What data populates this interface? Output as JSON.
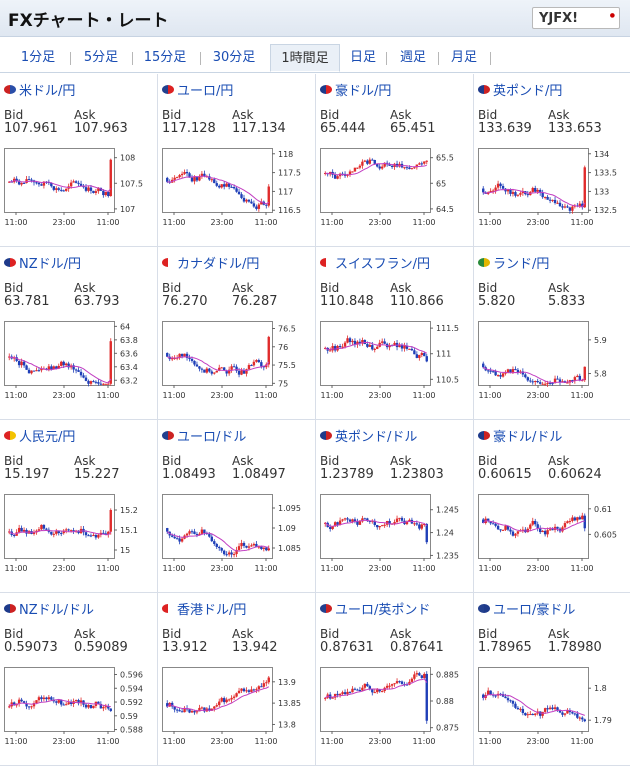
{
  "header": {
    "title": "FXチャート・レート",
    "logo": "YJFX!"
  },
  "tabs": [
    {
      "label": "1分足"
    },
    {
      "label": "5分足"
    },
    {
      "label": "15分足"
    },
    {
      "label": "30分足"
    },
    {
      "label": "1時間足",
      "active": true
    },
    {
      "label": "日足"
    },
    {
      "label": "週足"
    },
    {
      "label": "月足"
    }
  ],
  "bid_label": "Bid",
  "ask_label": "Ask",
  "x_ticks": [
    "11:00",
    "23:00",
    "11:00"
  ],
  "colors": {
    "up": "#e02b2b",
    "down": "#1f3fb8",
    "ma": "#c23fc2",
    "link": "#1a4db3"
  },
  "pairs": [
    {
      "name": "米ドル/円",
      "flag": "usjp",
      "bid": "107.961",
      "ask": "107.963",
      "y_ticks": [
        "108",
        "107.5",
        "107"
      ],
      "ylim": [
        106.9,
        108.15
      ],
      "close": 107.96
    },
    {
      "name": "ユーロ/円",
      "flag": "eujp",
      "bid": "117.128",
      "ask": "117.134",
      "y_ticks": [
        "118",
        "117.5",
        "117",
        "116.5"
      ],
      "ylim": [
        116.4,
        118.1
      ],
      "close": 117.13
    },
    {
      "name": "豪ドル/円",
      "flag": "aujp",
      "bid": "65.444",
      "ask": "65.451",
      "y_ticks": [
        "65.5",
        "65",
        "64.5"
      ],
      "ylim": [
        64.4,
        65.65
      ],
      "close": 65.44
    },
    {
      "name": "英ポンド/円",
      "flag": "gbjp",
      "bid": "133.639",
      "ask": "133.653",
      "y_ticks": [
        "134",
        "133.5",
        "133",
        "132.5"
      ],
      "ylim": [
        132.4,
        134.1
      ],
      "close": 133.64
    },
    {
      "name": "NZドル/円",
      "flag": "nzjp",
      "bid": "63.781",
      "ask": "63.793",
      "y_ticks": [
        "64",
        "63.8",
        "63.6",
        "63.4",
        "63.2"
      ],
      "ylim": [
        63.1,
        64.05
      ],
      "close": 63.78
    },
    {
      "name": "カナダドル/円",
      "flag": "cajp",
      "bid": "76.270",
      "ask": "76.287",
      "y_ticks": [
        "76.5",
        "76",
        "75.5",
        "75"
      ],
      "ylim": [
        74.9,
        76.65
      ],
      "close": 76.27
    },
    {
      "name": "スイスフラン/円",
      "flag": "chjp",
      "bid": "110.848",
      "ask": "110.866",
      "y_ticks": [
        "111.5",
        "111",
        "110.5"
      ],
      "ylim": [
        110.35,
        111.6
      ],
      "close": 110.85
    },
    {
      "name": "ランド/円",
      "flag": "zajp",
      "bid": "5.820",
      "ask": "5.833",
      "y_ticks": [
        "5.9",
        "5.8"
      ],
      "ylim": [
        5.76,
        5.95
      ],
      "close": 5.82
    },
    {
      "name": "人民元/円",
      "flag": "cnjp",
      "bid": "15.197",
      "ask": "15.227",
      "y_ticks": [
        "15.2",
        "15.1",
        "15"
      ],
      "ylim": [
        14.95,
        15.27
      ],
      "close": 15.2
    },
    {
      "name": "ユーロ/ドル",
      "flag": "euus",
      "bid": "1.08493",
      "ask": "1.08497",
      "y_ticks": [
        "1.095",
        "1.09",
        "1.085"
      ],
      "ylim": [
        1.082,
        1.098
      ],
      "close": 1.0849
    },
    {
      "name": "英ポンド/ドル",
      "flag": "gbus",
      "bid": "1.23789",
      "ask": "1.23803",
      "y_ticks": [
        "1.245",
        "1.24",
        "1.235"
      ],
      "ylim": [
        1.234,
        1.248
      ],
      "close": 1.2379
    },
    {
      "name": "豪ドル/ドル",
      "flag": "auus",
      "bid": "0.60615",
      "ask": "0.60624",
      "y_ticks": [
        "0.61",
        "0.605"
      ],
      "ylim": [
        0.6,
        0.6125
      ],
      "close": 0.6062
    },
    {
      "name": "NZドル/ドル",
      "flag": "nzus",
      "bid": "0.59073",
      "ask": "0.59089",
      "y_ticks": [
        "0.596",
        "0.594",
        "0.592",
        "0.59",
        "0.588"
      ],
      "ylim": [
        0.5875,
        0.5968
      ],
      "close": 0.5907
    },
    {
      "name": "香港ドル/円",
      "flag": "hkjp",
      "bid": "13.912",
      "ask": "13.942",
      "y_ticks": [
        "13.9",
        "13.85",
        "13.8"
      ],
      "ylim": [
        13.78,
        13.93
      ],
      "close": 13.91
    },
    {
      "name": "ユーロ/英ポンド",
      "flag": "eugb",
      "bid": "0.87631",
      "ask": "0.87641",
      "y_ticks": [
        "0.885",
        "0.88",
        "0.875"
      ],
      "ylim": [
        0.874,
        0.886
      ],
      "close": 0.8763
    },
    {
      "name": "ユーロ/豪ドル",
      "flag": "euau",
      "bid": "1.78965",
      "ask": "1.78980",
      "y_ticks": [
        "1.8",
        "1.79"
      ],
      "ylim": [
        1.786,
        1.806
      ],
      "close": 1.7897
    }
  ]
}
